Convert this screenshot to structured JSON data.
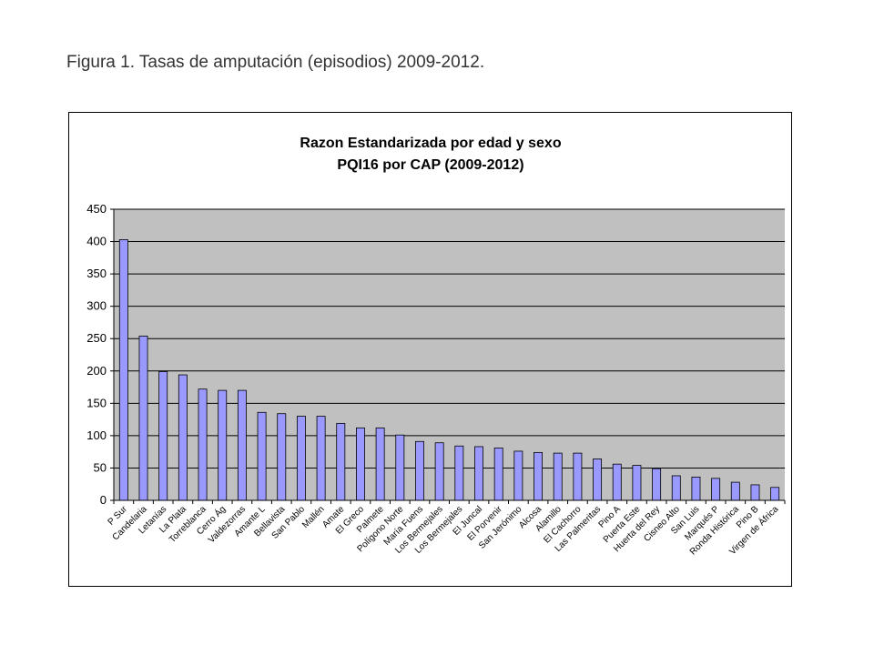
{
  "caption": "Figura 1. Tasas de amputación (episodios) 2009-2012.",
  "chart_data": {
    "type": "bar",
    "title_lines": [
      "Razon Estandarizada por edad y sexo",
      "PQI16 por CAP (2009-2012)"
    ],
    "xlabel": "",
    "ylabel": "",
    "ylim": [
      0,
      450
    ],
    "yticks": [
      0,
      50,
      100,
      150,
      200,
      250,
      300,
      350,
      400,
      450
    ],
    "grid": true,
    "legend": "none",
    "colors": {
      "plot_bg": "#c0c0c0",
      "bar_fill": "#9999ff",
      "bar_stroke": "#000000",
      "grid": "#000000"
    },
    "categories": [
      "P Sur",
      "Candelaria",
      "Letanías",
      "La Plata",
      "Torreblanca",
      "Cerro Ág",
      "Valdezorras",
      "Amante L",
      "Bellavista",
      "San Pablo",
      "Mallén",
      "Amate",
      "El Greco",
      "Palmete",
      "Polígono Norte",
      "María Fuens",
      "Los Bermejales",
      "Los Bermejales",
      "El Juncal",
      "El Porvenir",
      "San Jerónimo",
      "Alcosa",
      "Alamillo",
      "El Cachorro",
      "Las Palmeritas",
      "Pino A",
      "Puerta Este",
      "Huerta del Rey",
      "Cisneo Alto",
      "San Luis",
      "Marqués P",
      "Ronda Histórica",
      "Pino B",
      "Virgen de África"
    ],
    "values": [
      403,
      254,
      199,
      194,
      172,
      170,
      170,
      136,
      134,
      130,
      130,
      119,
      112,
      112,
      101,
      91,
      89,
      84,
      83,
      81,
      76,
      74,
      73,
      73,
      64,
      56,
      54,
      49,
      38,
      36,
      34,
      28,
      24,
      20
    ]
  }
}
